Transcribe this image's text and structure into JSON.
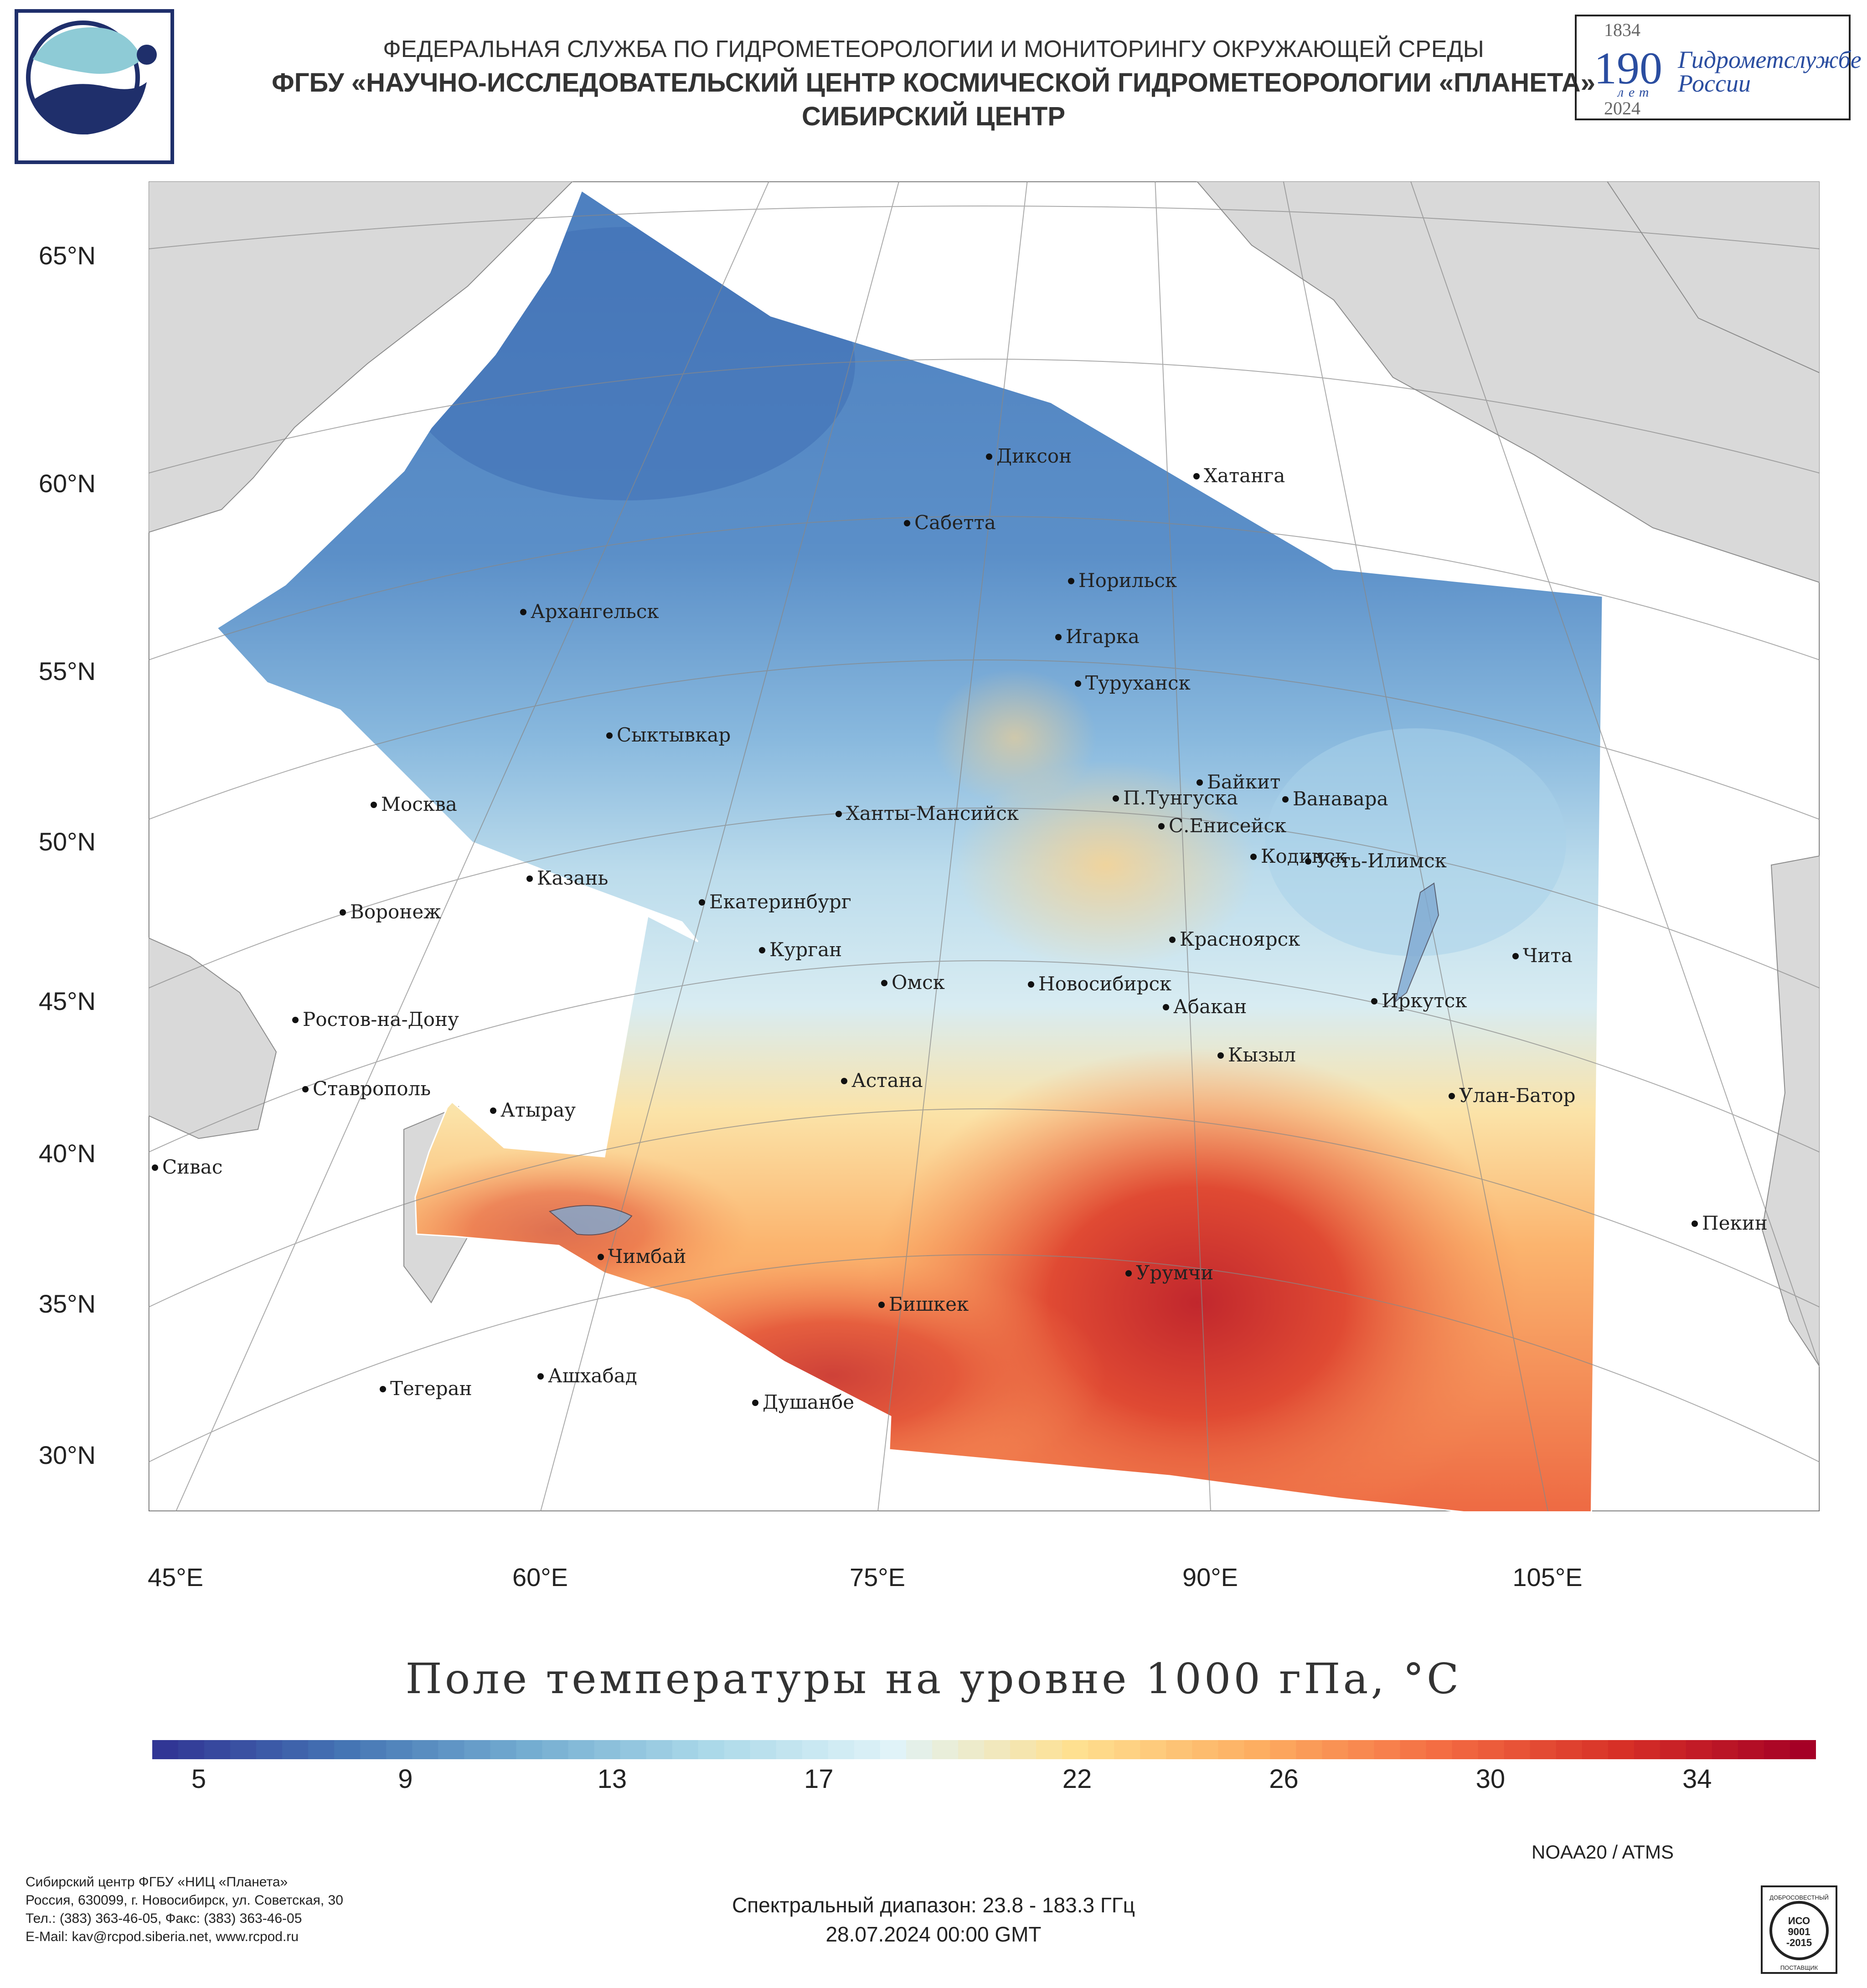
{
  "header": {
    "line1": "ФЕДЕРАЛЬНАЯ СЛУЖБА ПО ГИДРОМЕТЕОРОЛОГИИ И МОНИТОРИНГУ ОКРУЖАЮЩЕЙ СРЕДЫ",
    "line2": "ФГБУ «НАУЧНО-ИССЛЕДОВАТЕЛЬСКИЙ ЦЕНТР КОСМИЧЕСКОЙ ГИДРОМЕТЕОРОЛОГИИ «ПЛАНЕТА»",
    "line3": "СИБИРСКИЙ ЦЕНТР"
  },
  "badge": {
    "year_start": "1834",
    "number": "190",
    "years_word": "лет",
    "year_end": "2024",
    "text_line1": "Гидрометслужбе",
    "text_line2": "России"
  },
  "map": {
    "lat_labels": [
      "65°N",
      "60°N",
      "55°N",
      "50°N",
      "45°N",
      "40°N",
      "35°N",
      "30°N"
    ],
    "lon_labels": [
      "45°E",
      "60°E",
      "75°E",
      "90°E",
      "105°E"
    ],
    "cities": [
      "Диксон",
      "Хатанга",
      "Сабетта",
      "Норильск",
      "Архангельск",
      "Игарка",
      "Туруханск",
      "Сыктывкар",
      "Байкит",
      "П.Тунгуска",
      "Ванавара",
      "Москва",
      "Ханты-Мансийск",
      "С.Енисейск",
      "Кодинск",
      "Усть-Илимск",
      "Казань",
      "Екатеринбург",
      "Воронеж",
      "Красноярск",
      "Курган",
      "Чита",
      "Омск",
      "Новосибирск",
      "Ростов-на-Дону",
      "Иркутск",
      "Абакан",
      "Кызыл",
      "Ставрополь",
      "Астана",
      "Улан-Батор",
      "Атырау",
      "Сивас",
      "Пекин",
      "Чимбай",
      "Урумчи",
      "Бишкек",
      "Ашхабад",
      "Тегеран",
      "Душанбе"
    ]
  },
  "colorbar": {
    "title": "Поле температуры на уровне 1000 гПа, °C",
    "min": 4.1,
    "max": 36.3,
    "ticks": [
      "5",
      "9",
      "13",
      "17",
      "22",
      "26",
      "30",
      "34"
    ],
    "tick_values": [
      5,
      9,
      13,
      17,
      22,
      26,
      30,
      34
    ],
    "colors": [
      "#313695",
      "#4575b4",
      "#74add1",
      "#abd9e9",
      "#e0f3f8",
      "#fee090",
      "#fdae61",
      "#f46d43",
      "#d73027",
      "#a50026"
    ]
  },
  "satellite": "NOAA20 / ATMS",
  "footer": {
    "org": "Сибирский центр ФГБУ «НИЦ «Планета»",
    "address": "Россия, 630099, г. Новосибирск, ул. Советская, 30",
    "phone": "Тел.: (383) 363-46-05, Факс: (383) 363-46-05",
    "email": "E-Mail: kav@rcpod.siberia.net, www.rcpod.ru",
    "spectral": "Спектральный диапазон: 23.8 - 183.3 ГГц",
    "datetime": "28.07.2024 00:00 GMT"
  },
  "iso": {
    "top": "ДОБРОСОВЕСТНЫЙ",
    "line1": "ИСО",
    "line2": "9001",
    "line3": "-2015",
    "bottom": "ПОСТАВЩИК"
  }
}
